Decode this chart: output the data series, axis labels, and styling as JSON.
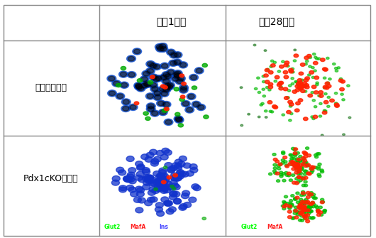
{
  "title_col1": "生後1日目",
  "title_col2": "生後28日目",
  "row_label1": "コントロール",
  "row_label2": "Pdx1cKOマウス",
  "legend_left": [
    "Glut2",
    "/",
    "MafA",
    "/",
    "Ins"
  ],
  "legend_left_colors": [
    "#00ff00",
    "#ffffff",
    "#ff2222",
    "#ffffff",
    "#4444ff"
  ],
  "legend_right": [
    "Glut2",
    "/",
    "MafA"
  ],
  "legend_right_colors": [
    "#00ff00",
    "#ffffff",
    "#ff2222"
  ],
  "bg_color": "#000000",
  "outer_bg": "#ffffff",
  "border_color": "#888888"
}
